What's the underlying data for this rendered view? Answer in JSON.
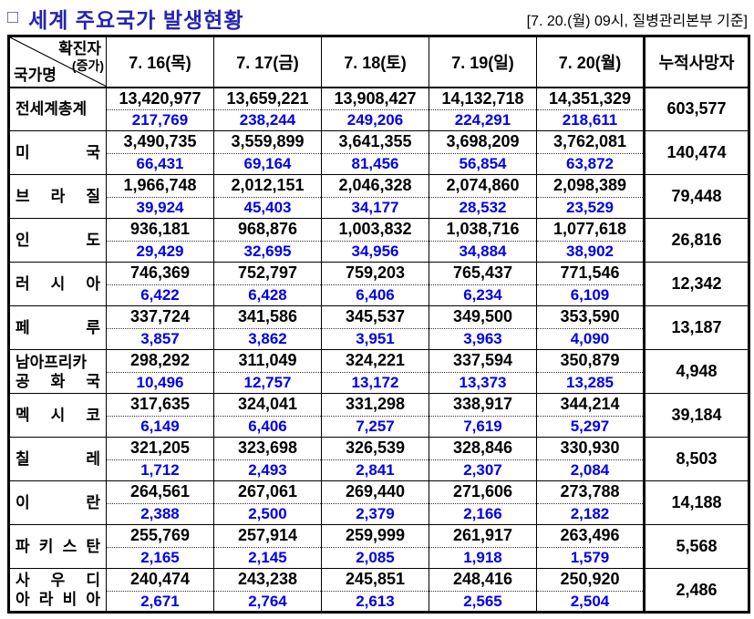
{
  "page": {
    "title_bullet": "□",
    "title": "세계 주요국가 발생현황",
    "date_note": "[7. 20.(월) 09시, 질병관리본부 기준]"
  },
  "colors": {
    "title": "#2523b0",
    "increase": "#0000ee"
  },
  "table": {
    "corner": {
      "top": "확진자",
      "sub": "(증가)",
      "bottom": "국가명"
    },
    "date_columns": [
      "7. 16(목)",
      "7. 17(금)",
      "7. 18(토)",
      "7. 19(일)",
      "7. 20(월)"
    ],
    "deaths_header": "누적사망자",
    "rows": [
      {
        "name_lines": [
          "전세계총계"
        ],
        "days": [
          {
            "total": "13,420,977",
            "increase": "217,769"
          },
          {
            "total": "13,659,221",
            "increase": "238,244"
          },
          {
            "total": "13,908,427",
            "increase": "249,206"
          },
          {
            "total": "14,132,718",
            "increase": "224,291"
          },
          {
            "total": "14,351,329",
            "increase": "218,611"
          }
        ],
        "deaths": "603,577"
      },
      {
        "name_lines": [
          "미 국"
        ],
        "days": [
          {
            "total": "3,490,735",
            "increase": "66,431"
          },
          {
            "total": "3,559,899",
            "increase": "69,164"
          },
          {
            "total": "3,641,355",
            "increase": "81,456"
          },
          {
            "total": "3,698,209",
            "increase": "56,854"
          },
          {
            "total": "3,762,081",
            "increase": "63,872"
          }
        ],
        "deaths": "140,474"
      },
      {
        "name_lines": [
          "브 라 질"
        ],
        "days": [
          {
            "total": "1,966,748",
            "increase": "39,924"
          },
          {
            "total": "2,012,151",
            "increase": "45,403"
          },
          {
            "total": "2,046,328",
            "increase": "34,177"
          },
          {
            "total": "2,074,860",
            "increase": "28,532"
          },
          {
            "total": "2,098,389",
            "increase": "23,529"
          }
        ],
        "deaths": "79,448"
      },
      {
        "name_lines": [
          "인 도"
        ],
        "days": [
          {
            "total": "936,181",
            "increase": "29,429"
          },
          {
            "total": "968,876",
            "increase": "32,695"
          },
          {
            "total": "1,003,832",
            "increase": "34,956"
          },
          {
            "total": "1,038,716",
            "increase": "34,884"
          },
          {
            "total": "1,077,618",
            "increase": "38,902"
          }
        ],
        "deaths": "26,816"
      },
      {
        "name_lines": [
          "러 시 아"
        ],
        "days": [
          {
            "total": "746,369",
            "increase": "6,422"
          },
          {
            "total": "752,797",
            "increase": "6,428"
          },
          {
            "total": "759,203",
            "increase": "6,406"
          },
          {
            "total": "765,437",
            "increase": "6,234"
          },
          {
            "total": "771,546",
            "increase": "6,109"
          }
        ],
        "deaths": "12,342"
      },
      {
        "name_lines": [
          "페 루"
        ],
        "days": [
          {
            "total": "337,724",
            "increase": "3,857"
          },
          {
            "total": "341,586",
            "increase": "3,862"
          },
          {
            "total": "345,537",
            "increase": "3,951"
          },
          {
            "total": "349,500",
            "increase": "3,963"
          },
          {
            "total": "353,590",
            "increase": "4,090"
          }
        ],
        "deaths": "13,187"
      },
      {
        "name_lines": [
          "남아프리카",
          "공 화 국"
        ],
        "days": [
          {
            "total": "298,292",
            "increase": "10,496"
          },
          {
            "total": "311,049",
            "increase": "12,757"
          },
          {
            "total": "324,221",
            "increase": "13,172"
          },
          {
            "total": "337,594",
            "increase": "13,373"
          },
          {
            "total": "350,879",
            "increase": "13,285"
          }
        ],
        "deaths": "4,948"
      },
      {
        "name_lines": [
          "멕 시 코"
        ],
        "days": [
          {
            "total": "317,635",
            "increase": "6,149"
          },
          {
            "total": "324,041",
            "increase": "6,406"
          },
          {
            "total": "331,298",
            "increase": "7,257"
          },
          {
            "total": "338,917",
            "increase": "7,619"
          },
          {
            "total": "344,214",
            "increase": "5,297"
          }
        ],
        "deaths": "39,184"
      },
      {
        "name_lines": [
          "칠 레"
        ],
        "days": [
          {
            "total": "321,205",
            "increase": "1,712"
          },
          {
            "total": "323,698",
            "increase": "2,493"
          },
          {
            "total": "326,539",
            "increase": "2,841"
          },
          {
            "total": "328,846",
            "increase": "2,307"
          },
          {
            "total": "330,930",
            "increase": "2,084"
          }
        ],
        "deaths": "8,503"
      },
      {
        "name_lines": [
          "이 란"
        ],
        "days": [
          {
            "total": "264,561",
            "increase": "2,388"
          },
          {
            "total": "267,061",
            "increase": "2,500"
          },
          {
            "total": "269,440",
            "increase": "2,379"
          },
          {
            "total": "271,606",
            "increase": "2,166"
          },
          {
            "total": "273,788",
            "increase": "2,182"
          }
        ],
        "deaths": "14,188"
      },
      {
        "name_lines": [
          "파 키 스 탄"
        ],
        "days": [
          {
            "total": "255,769",
            "increase": "2,165"
          },
          {
            "total": "257,914",
            "increase": "2,145"
          },
          {
            "total": "259,999",
            "increase": "2,085"
          },
          {
            "total": "261,917",
            "increase": "1,918"
          },
          {
            "total": "263,496",
            "increase": "1,579"
          }
        ],
        "deaths": "5,568"
      },
      {
        "name_lines": [
          "사 우 디",
          "아 라 비 아"
        ],
        "days": [
          {
            "total": "240,474",
            "increase": "2,671"
          },
          {
            "total": "243,238",
            "increase": "2,764"
          },
          {
            "total": "245,851",
            "increase": "2,613"
          },
          {
            "total": "248,416",
            "increase": "2,565"
          },
          {
            "total": "250,920",
            "increase": "2,504"
          }
        ],
        "deaths": "2,486"
      }
    ]
  }
}
